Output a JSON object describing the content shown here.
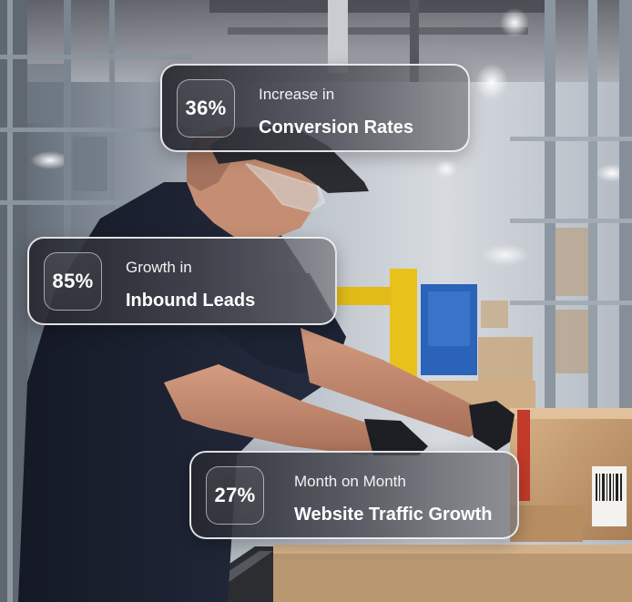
{
  "stats": [
    {
      "value": "36%",
      "line1": "Increase in",
      "line2": "Conversion Rates"
    },
    {
      "value": "85%",
      "line1": "Growth in",
      "line2": "Inbound Leads"
    },
    {
      "value": "27%",
      "line1": "Month on Month",
      "line2": "Website Traffic Growth"
    }
  ],
  "photo": {
    "subject": "warehouse-worker-packing-box-icon",
    "colors": {
      "ceiling": "#d9dde2",
      "shelving": "#9aa3ad",
      "shirt": "#1f2535",
      "skin": "#c58e72",
      "cardboard": "#c99f74",
      "yellow_machine": "#e8c21a",
      "blue_machine": "#2a63b8"
    }
  }
}
